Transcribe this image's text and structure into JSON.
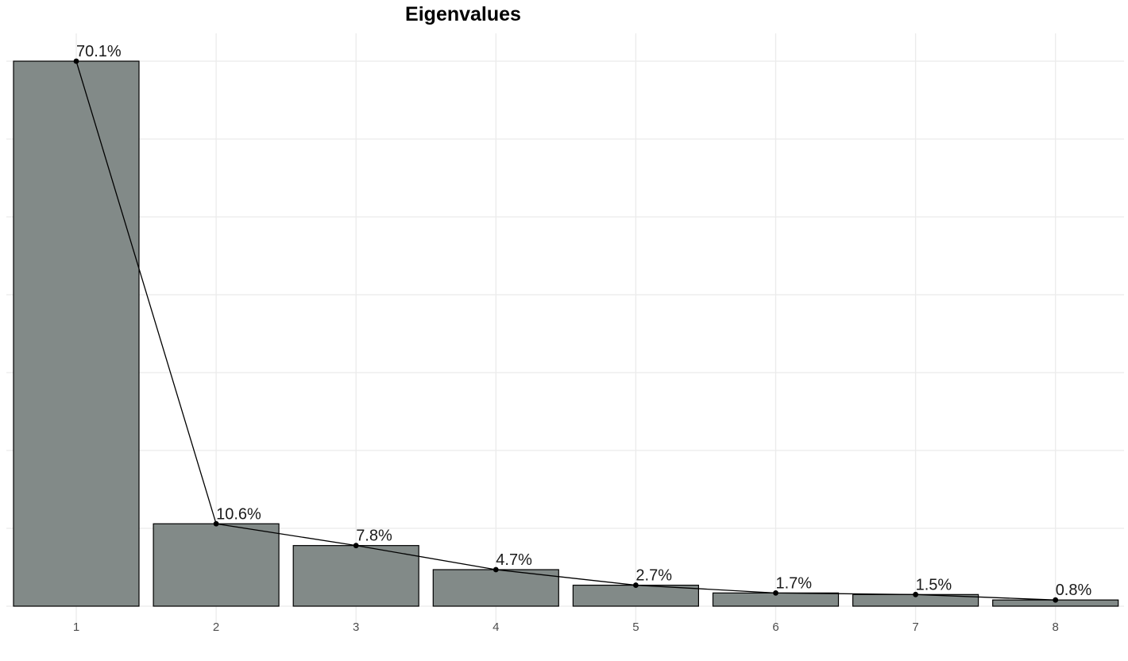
{
  "chart_data": {
    "type": "bar",
    "title": "Eigenvalues",
    "xlabel": "",
    "ylabel": "",
    "categories": [
      "1",
      "2",
      "3",
      "4",
      "5",
      "6",
      "7",
      "8"
    ],
    "values": [
      70.1,
      10.6,
      7.8,
      4.7,
      2.7,
      1.7,
      1.5,
      0.8
    ],
    "data_labels": [
      "70.1%",
      "10.6%",
      "7.8%",
      "4.7%",
      "2.7%",
      "1.7%",
      "1.5%",
      "0.8%"
    ],
    "ylim": [
      0,
      70.1
    ],
    "overlay": "line-with-points",
    "grid": true,
    "y_tick_labels_shown": false,
    "legend": "none",
    "colors": {
      "bar_fill": "#828a88",
      "bar_outline": "#000000",
      "line": "#000000",
      "grid": "#ebebeb",
      "background": "#ffffff"
    }
  }
}
